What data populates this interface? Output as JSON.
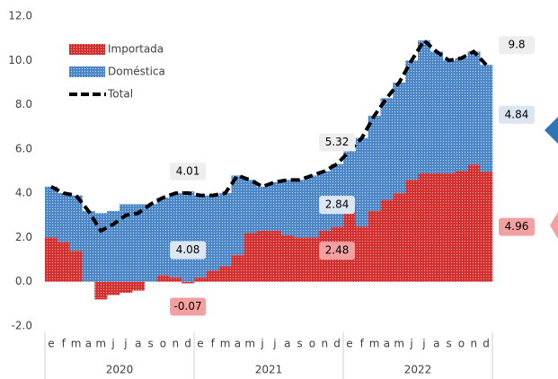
{
  "chart_data": {
    "type": "bar",
    "categories": [
      "e",
      "f",
      "m",
      "a",
      "m",
      "j",
      "j",
      "a",
      "s",
      "o",
      "n",
      "d",
      "e",
      "f",
      "m",
      "a",
      "m",
      "j",
      "j",
      "a",
      "s",
      "o",
      "n",
      "d",
      "e",
      "f",
      "m",
      "a",
      "m",
      "j",
      "j",
      "a",
      "s",
      "o",
      "n",
      "d"
    ],
    "years": [
      "2020",
      "2021",
      "2022"
    ],
    "series": [
      {
        "name": "Importada",
        "color": "#d62d2d",
        "values": [
          2.0,
          1.8,
          1.4,
          0.0,
          -0.8,
          -0.6,
          -0.5,
          -0.4,
          0.0,
          0.3,
          0.2,
          -0.07,
          0.2,
          0.5,
          0.7,
          1.2,
          2.2,
          2.3,
          2.3,
          2.1,
          2.0,
          2.0,
          2.3,
          2.48,
          3.4,
          2.5,
          3.2,
          3.7,
          4.0,
          4.6,
          4.9,
          4.9,
          4.9,
          5.0,
          5.3,
          4.96
        ]
      },
      {
        "name": "Doméstica",
        "color": "#4a86c8",
        "values": [
          2.3,
          2.2,
          2.5,
          3.2,
          3.1,
          3.2,
          3.5,
          3.5,
          3.5,
          3.5,
          3.8,
          4.08,
          3.7,
          3.4,
          3.3,
          3.6,
          2.4,
          2.0,
          2.2,
          2.5,
          2.6,
          2.8,
          2.7,
          2.84,
          2.5,
          4.0,
          4.3,
          4.6,
          5.0,
          5.4,
          6.0,
          5.5,
          5.1,
          5.1,
          5.1,
          4.84
        ]
      },
      {
        "name": "Total",
        "color": "#000000",
        "line": true,
        "values": [
          4.3,
          4.0,
          3.9,
          3.2,
          2.3,
          2.6,
          3.0,
          3.1,
          3.5,
          3.8,
          4.0,
          4.01,
          3.9,
          3.9,
          4.0,
          4.8,
          4.6,
          4.3,
          4.5,
          4.6,
          4.6,
          4.8,
          5.0,
          5.32,
          5.9,
          6.5,
          7.5,
          8.3,
          9.0,
          10.0,
          10.9,
          10.4,
          10.0,
          10.1,
          10.4,
          9.8
        ]
      }
    ],
    "data_labels_at": [
      11,
      23,
      35
    ],
    "ylim": [
      -2,
      12
    ],
    "yticks": [
      {
        "value": -2,
        "label": "-2.0"
      },
      {
        "value": 0,
        "label": "0.0"
      },
      {
        "value": 2,
        "label": "2.0"
      },
      {
        "value": 4,
        "label": "4.0"
      },
      {
        "value": 6,
        "label": "6.0"
      },
      {
        "value": 8,
        "label": "8.0"
      },
      {
        "value": 10,
        "label": "10.0"
      },
      {
        "value": 12,
        "label": "12.0"
      }
    ],
    "grid": false
  }
}
